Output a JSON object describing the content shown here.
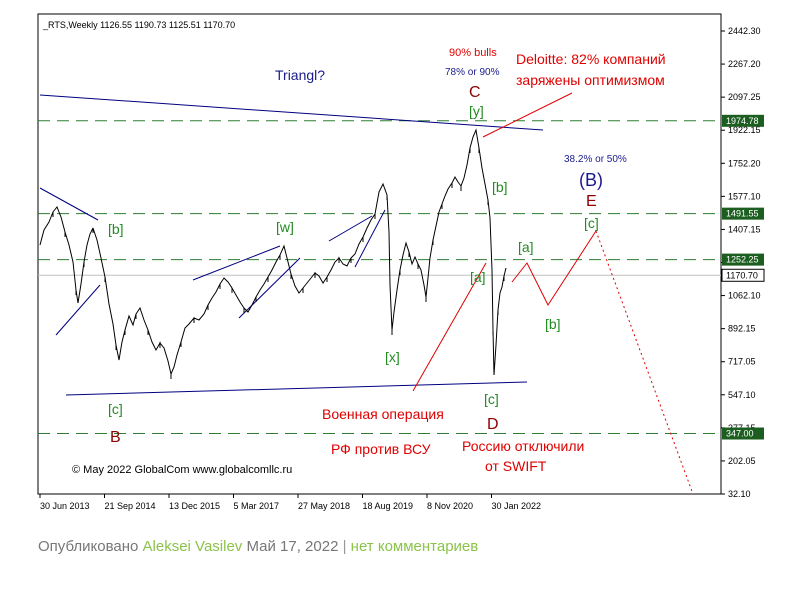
{
  "chart_data": {
    "type": "line",
    "header": "_RTS,Weekly  1126.55 1190.73 1125.51 1170.70",
    "ylim": [
      32.1,
      2442.3
    ],
    "y_ticks": [
      "2442.30",
      "2267.20",
      "2097.25",
      "1922.15",
      "1752.20",
      "1577.10",
      "1407.15",
      "1232.05",
      "1062.10",
      "892.15",
      "717.05",
      "547.10",
      "377.15",
      "202.05",
      "32.10"
    ],
    "x_ticks": [
      "30 Jun 2013",
      "21 Sep 2014",
      "13 Dec 2015",
      "5 Mar 2017",
      "27 May 2018",
      "18 Aug 2019",
      "8 Nov 2020",
      "30 Jan 2022"
    ],
    "levels": [
      {
        "label": "1974.78",
        "value": 1974.78
      },
      {
        "label": "1491.55",
        "value": 1491.55
      },
      {
        "label": "1252.25",
        "value": 1252.25
      },
      {
        "label": "347.00",
        "value": 347.0
      }
    ],
    "current": {
      "label": "1170.70",
      "value": 1170.7
    },
    "colors": {
      "price": "#000000",
      "trend": "#000080",
      "level": "#2e7d32",
      "label_bg": "#1b5e20",
      "wave": "#228b22",
      "major": "#8b0000",
      "note": "#e00000",
      "note_blue": "#1a1a8c"
    },
    "wave_labels": [
      "[b]",
      "[c]",
      "B",
      "[w]",
      "[x]",
      "[y]",
      "C",
      "[a]",
      "[b]",
      "[c]",
      "D",
      "[a]",
      "[b]",
      "[c]",
      "(B)",
      "E"
    ],
    "annotations": {
      "triangle": "Triangl?",
      "bulls": "90% bulls",
      "bulls_sub": "78% or 90%",
      "deloitte_1": "Deloitte: 82% компаний",
      "deloitte_2": "заряжены оптимизмом",
      "fib": "38.2% or 50%",
      "war_1": "Военная операция",
      "war_2": "РФ против ВСУ",
      "swift_1": "Россию отключили",
      "swift_2": "от SWIFT",
      "copyright": "© May 2022 GlobalCom www.globalcomllc.ru"
    },
    "grid": false,
    "legend": "none"
  },
  "footer": {
    "published": "Опубликовано",
    "author": "Aleksei Vasilev",
    "date": "Май 17, 2022",
    "separator": "|",
    "comments": "нет комментариев"
  }
}
